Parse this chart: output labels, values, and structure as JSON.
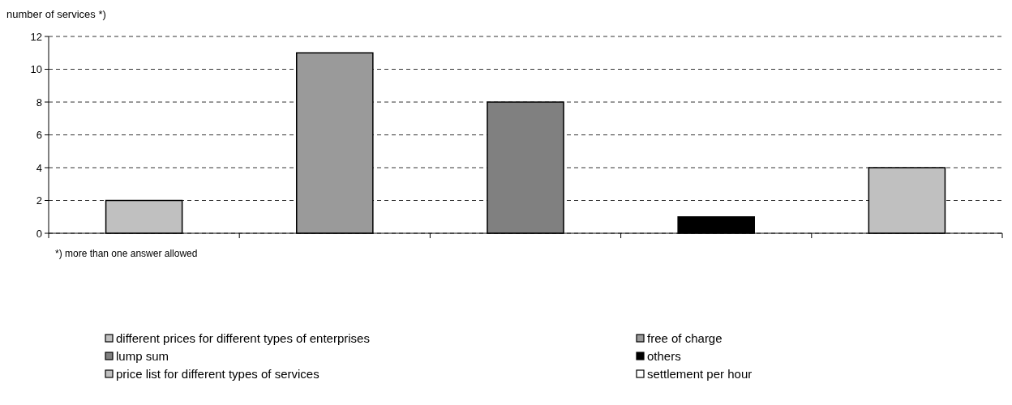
{
  "chart_data": {
    "type": "bar",
    "ylabel": "number of services *)",
    "categories": [
      null,
      null,
      null,
      null,
      null
    ],
    "series": [
      {
        "name": "different prices for different types of enterprises",
        "color": "#c0c0c0",
        "values": [
          2,
          null,
          null,
          null,
          null
        ]
      },
      {
        "name": "free of charge",
        "color": "#9a9a9a",
        "values": [
          null,
          11,
          null,
          null,
          null
        ]
      },
      {
        "name": "lump sum",
        "color": "#808080",
        "values": [
          null,
          null,
          8,
          null,
          null
        ]
      },
      {
        "name": "others",
        "color": "#000000",
        "values": [
          null,
          null,
          null,
          1,
          null
        ]
      },
      {
        "name": "price list for different types of services",
        "color": "#c0c0c0",
        "values": [
          null,
          null,
          null,
          null,
          4
        ]
      },
      {
        "name": "settlement per hour",
        "color": "#ffffff",
        "values": [
          null,
          null,
          null,
          null,
          null
        ]
      }
    ],
    "ylim": [
      0,
      12
    ],
    "yticks": [
      0,
      2,
      4,
      6,
      8,
      10,
      12
    ],
    "grid": "y",
    "legend": "bottom",
    "annotations": [
      "*) more than one answer allowed"
    ]
  }
}
